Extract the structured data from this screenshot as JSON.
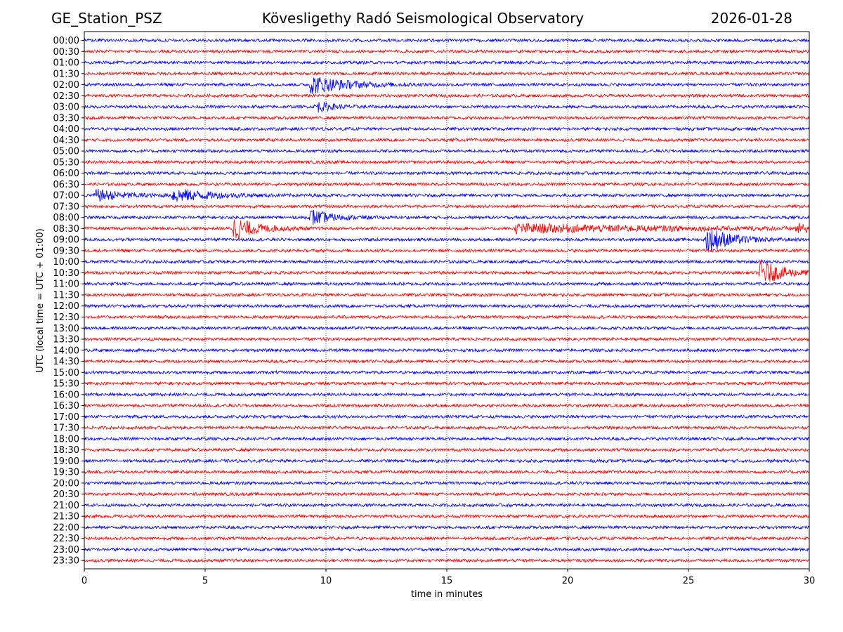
{
  "header": {
    "station": "GE_Station_PSZ",
    "observatory": "Kövesligethy Radó Seismological Observatory",
    "date": "2026-01-28"
  },
  "chart_data": {
    "type": "line",
    "title": "Kövesligethy Radó Seismological Observatory",
    "xlabel": "time in minutes",
    "ylabel": "UTC (local time = UTC + 01:00)",
    "xlim": [
      0,
      30
    ],
    "x_ticks": [
      0,
      5,
      10,
      15,
      20,
      25,
      30
    ],
    "x_gridlines_dotted": [
      5,
      10,
      15,
      20,
      25
    ],
    "row_labels": [
      "00:00",
      "00:30",
      "01:00",
      "01:30",
      "02:00",
      "02:30",
      "03:00",
      "03:30",
      "04:00",
      "04:30",
      "05:00",
      "05:30",
      "06:00",
      "06:30",
      "07:00",
      "07:30",
      "08:00",
      "08:30",
      "09:00",
      "09:30",
      "10:00",
      "10:30",
      "11:00",
      "11:30",
      "12:00",
      "12:30",
      "13:00",
      "13:30",
      "14:00",
      "14:30",
      "15:00",
      "15:30",
      "16:00",
      "16:30",
      "17:00",
      "17:30",
      "18:00",
      "18:30",
      "19:00",
      "19:30",
      "20:00",
      "20:30",
      "21:00",
      "21:30",
      "22:00",
      "22:30",
      "23:00",
      "23:30"
    ],
    "trace_colors": [
      "#0000ff",
      "#ff0000"
    ],
    "noise_amplitude": 0.15,
    "events": [
      {
        "row": "02:00",
        "start_min": 9.3,
        "peak_amp": 1.0,
        "decay_min": 1.4
      },
      {
        "row": "03:00",
        "start_min": 9.5,
        "peak_amp": 0.6,
        "decay_min": 0.7
      },
      {
        "row": "07:00",
        "start_min": 0.4,
        "peak_amp": 0.6,
        "decay_min": 1.2
      },
      {
        "row": "07:00",
        "start_min": 3.6,
        "peak_amp": 0.7,
        "decay_min": 1.5
      },
      {
        "row": "08:00",
        "start_min": 9.3,
        "peak_amp": 0.9,
        "decay_min": 0.8
      },
      {
        "row": "08:30",
        "start_min": 6.1,
        "peak_amp": 1.3,
        "decay_min": 0.9
      },
      {
        "row": "08:30",
        "start_min": 17.8,
        "peak_amp": 0.45,
        "decay_min": 6.0
      },
      {
        "row": "08:30",
        "start_min": 29.4,
        "peak_amp": 0.5,
        "decay_min": 0.6
      },
      {
        "row": "09:00",
        "start_min": 25.7,
        "peak_amp": 1.5,
        "decay_min": 0.9
      },
      {
        "row": "10:30",
        "start_min": 27.9,
        "peak_amp": 1.4,
        "decay_min": 0.9
      }
    ]
  }
}
